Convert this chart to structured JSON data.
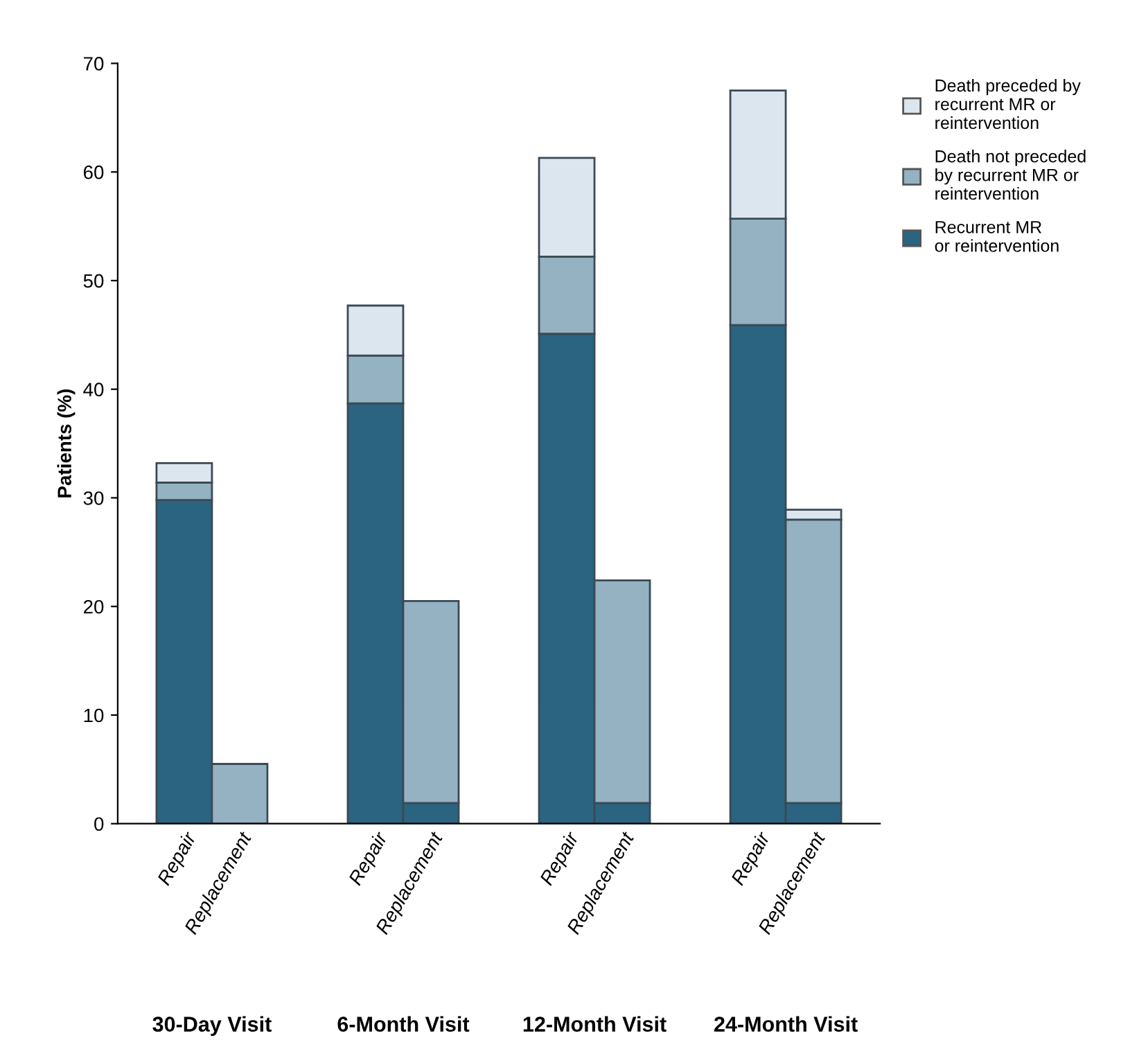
{
  "chart_data": {
    "type": "bar",
    "stacked": true,
    "ylabel": "Patients (%)",
    "categories": [
      "Repair",
      "Replacement",
      "Repair",
      "Replacement",
      "Repair",
      "Replacement",
      "Repair",
      "Replacement"
    ],
    "annotations": [
      "30-Day Visit",
      "6-Month Visit",
      "12-Month Visit",
      "24-Month Visit"
    ],
    "series": [
      {
        "name": "Recurrent MR\nor reintervention",
        "color": "#2a6480",
        "values": [
          29.8,
          null,
          38.7,
          1.9,
          45.1,
          1.9,
          45.9,
          1.9
        ]
      },
      {
        "name": "Death not preceded\nby recurrent MR or\nreintervention",
        "color": "#94b2c2",
        "values": [
          1.6,
          5.5,
          4.4,
          18.6,
          7.1,
          20.5,
          9.8,
          26.1
        ]
      },
      {
        "name": "Death preceded by\nrecurrent MR or\nreintervention",
        "color": "#dce6ee",
        "values": [
          1.8,
          null,
          4.6,
          null,
          9.1,
          null,
          11.8,
          0.9
        ]
      }
    ],
    "ylim": [
      0,
      70
    ],
    "yticks": [
      0,
      10,
      20,
      30,
      40,
      50,
      60,
      70
    ],
    "grid": false,
    "legend": "top right"
  }
}
